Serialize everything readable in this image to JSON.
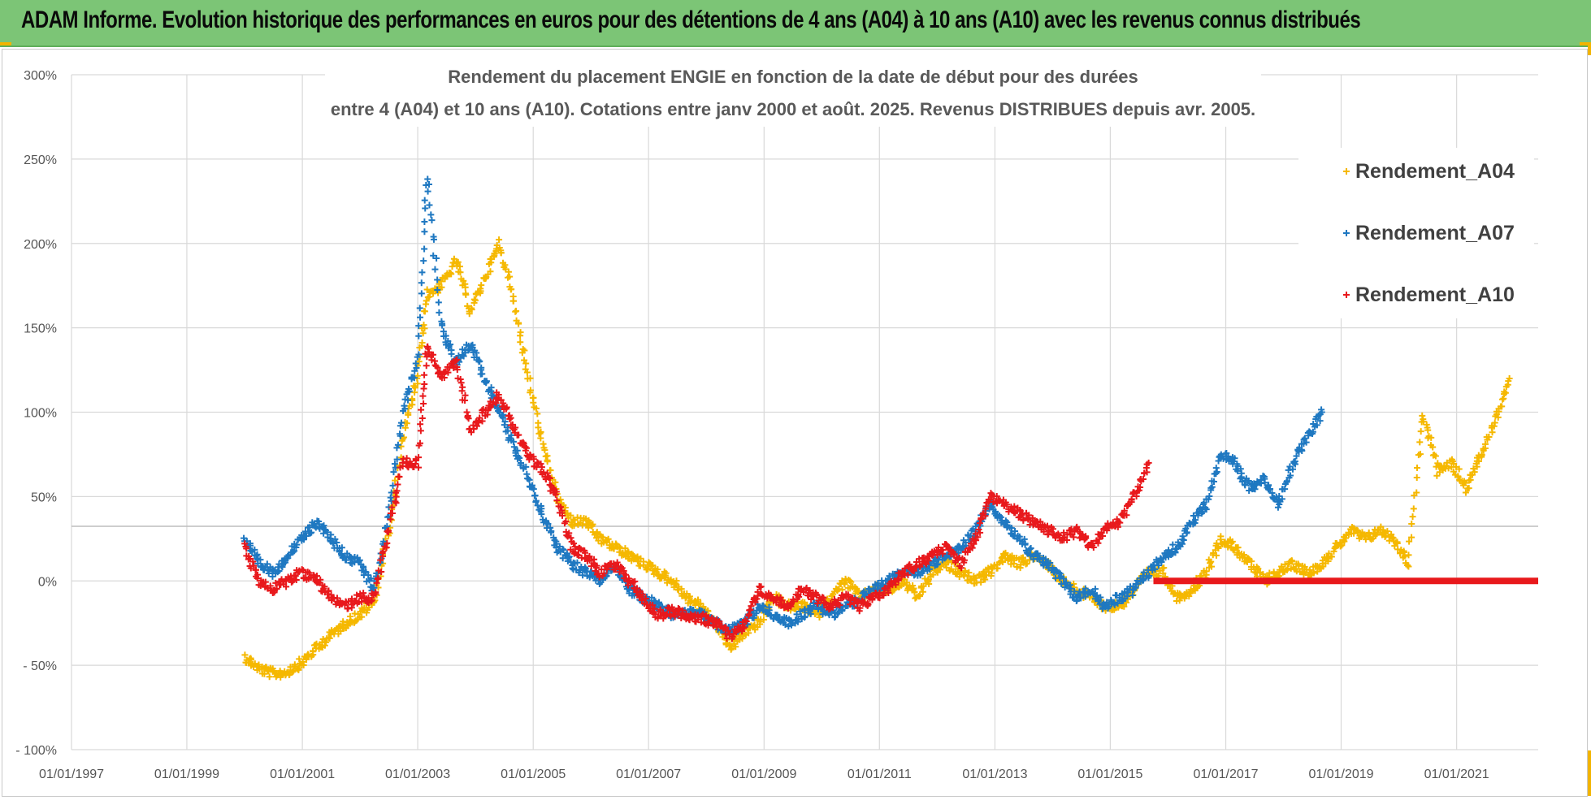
{
  "header": {
    "title": "ADAM Informe. Evolution historique des performances en euros pour des détentions de 4 ans (A04) à 10 ans (A10) avec les revenus connus distribués"
  },
  "colors": {
    "banner": "#7cc576",
    "a04": "#f5b800",
    "a07": "#1f78c1",
    "a10": "#e8191c"
  },
  "chart_data": {
    "type": "scatter",
    "title_lines": [
      "Rendement du placement ENGIE en fonction de la date de début pour des durées",
      "entre 4 (A04) et 10 ans (A10). Cotations entre janv 2000 et août. 2025. Revenus DISTRIBUES depuis avr. 2005."
    ],
    "x_axis": {
      "type": "date",
      "range": [
        "1997-01-01",
        "2022-06-01"
      ],
      "tick_labels": [
        "01/01/1997",
        "01/01/1999",
        "01/01/2001",
        "01/01/2003",
        "01/01/2005",
        "01/01/2007",
        "01/01/2009",
        "01/01/2011",
        "01/01/2013",
        "01/01/2015",
        "01/01/2017",
        "01/01/2019",
        "01/01/2021"
      ]
    },
    "y_axis": {
      "unit": "%",
      "range": [
        -100,
        300
      ],
      "tick_values": [
        300,
        250,
        200,
        150,
        100,
        50,
        0,
        -50,
        -100
      ],
      "tick_labels": [
        "300%",
        "250%",
        "200%",
        "150%",
        "100%",
        "50%",
        "0%",
        "- 50%",
        "- 100%"
      ]
    },
    "grid": true,
    "legend_position": "top-right",
    "marker": "+",
    "series": [
      {
        "name": "Rendement_A04",
        "color": "#f5b800",
        "points": [
          [
            "2000-01-01",
            -45
          ],
          [
            "2000-04-01",
            -52
          ],
          [
            "2000-07-01",
            -55
          ],
          [
            "2000-10-01",
            -54
          ],
          [
            "2001-01-01",
            -48
          ],
          [
            "2001-04-01",
            -40
          ],
          [
            "2001-07-01",
            -32
          ],
          [
            "2001-10-01",
            -25
          ],
          [
            "2002-01-01",
            -20
          ],
          [
            "2002-04-01",
            -12
          ],
          [
            "2002-07-01",
            30
          ],
          [
            "2002-10-01",
            85
          ],
          [
            "2003-01-01",
            120
          ],
          [
            "2003-03-01",
            170
          ],
          [
            "2003-06-01",
            175
          ],
          [
            "2003-09-01",
            190
          ],
          [
            "2003-12-01",
            160
          ],
          [
            "2004-03-01",
            180
          ],
          [
            "2004-06-01",
            200
          ],
          [
            "2004-09-01",
            165
          ],
          [
            "2004-12-01",
            120
          ],
          [
            "2005-03-01",
            80
          ],
          [
            "2005-06-01",
            50
          ],
          [
            "2005-09-01",
            35
          ],
          [
            "2005-12-01",
            35
          ],
          [
            "2006-03-01",
            25
          ],
          [
            "2006-06-01",
            20
          ],
          [
            "2006-09-01",
            15
          ],
          [
            "2006-12-01",
            10
          ],
          [
            "2007-03-01",
            5
          ],
          [
            "2007-06-01",
            0
          ],
          [
            "2007-09-01",
            -10
          ],
          [
            "2007-12-01",
            -15
          ],
          [
            "2008-03-01",
            -25
          ],
          [
            "2008-06-01",
            -40
          ],
          [
            "2008-09-01",
            -30
          ],
          [
            "2008-12-01",
            -25
          ],
          [
            "2009-03-01",
            -10
          ],
          [
            "2009-06-01",
            -15
          ],
          [
            "2009-09-01",
            -15
          ],
          [
            "2009-12-01",
            -20
          ],
          [
            "2010-03-01",
            -10
          ],
          [
            "2010-06-01",
            0
          ],
          [
            "2010-09-01",
            -10
          ],
          [
            "2010-12-01",
            -5
          ],
          [
            "2011-03-01",
            -5
          ],
          [
            "2011-06-01",
            0
          ],
          [
            "2011-09-01",
            -10
          ],
          [
            "2011-12-01",
            5
          ],
          [
            "2012-03-01",
            10
          ],
          [
            "2012-06-01",
            5
          ],
          [
            "2012-09-01",
            0
          ],
          [
            "2012-12-01",
            5
          ],
          [
            "2013-03-01",
            15
          ],
          [
            "2013-06-01",
            10
          ],
          [
            "2013-09-01",
            15
          ],
          [
            "2013-12-01",
            10
          ],
          [
            "2014-03-01",
            0
          ],
          [
            "2014-06-01",
            -5
          ],
          [
            "2014-09-01",
            -10
          ],
          [
            "2014-12-01",
            -15
          ],
          [
            "2015-03-01",
            -15
          ],
          [
            "2015-06-01",
            -5
          ],
          [
            "2015-09-01",
            5
          ],
          [
            "2015-12-01",
            5
          ],
          [
            "2016-03-01",
            -10
          ],
          [
            "2016-06-01",
            -5
          ],
          [
            "2016-09-01",
            5
          ],
          [
            "2016-12-01",
            25
          ],
          [
            "2017-03-01",
            20
          ],
          [
            "2017-06-01",
            10
          ],
          [
            "2017-09-01",
            0
          ],
          [
            "2017-12-01",
            5
          ],
          [
            "2018-03-01",
            10
          ],
          [
            "2018-06-01",
            5
          ],
          [
            "2018-09-01",
            10
          ],
          [
            "2018-12-01",
            20
          ],
          [
            "2019-03-01",
            30
          ],
          [
            "2019-06-01",
            25
          ],
          [
            "2019-09-01",
            30
          ],
          [
            "2019-12-01",
            25
          ],
          [
            "2020-03-01",
            10
          ],
          [
            "2020-06-01",
            100
          ],
          [
            "2020-09-01",
            65
          ],
          [
            "2020-12-01",
            70
          ],
          [
            "2021-03-01",
            55
          ],
          [
            "2021-06-01",
            75
          ],
          [
            "2021-09-01",
            95
          ],
          [
            "2021-12-01",
            120
          ]
        ]
      },
      {
        "name": "Rendement_A07",
        "color": "#1f78c1",
        "points": [
          [
            "2000-01-01",
            25
          ],
          [
            "2000-04-01",
            10
          ],
          [
            "2000-07-01",
            5
          ],
          [
            "2000-10-01",
            15
          ],
          [
            "2001-01-01",
            25
          ],
          [
            "2001-04-01",
            35
          ],
          [
            "2001-07-01",
            25
          ],
          [
            "2001-10-01",
            15
          ],
          [
            "2002-01-01",
            10
          ],
          [
            "2002-04-01",
            -5
          ],
          [
            "2002-07-01",
            40
          ],
          [
            "2002-10-01",
            100
          ],
          [
            "2003-01-01",
            130
          ],
          [
            "2003-03-01",
            240
          ],
          [
            "2003-06-01",
            150
          ],
          [
            "2003-09-01",
            130
          ],
          [
            "2003-12-01",
            140
          ],
          [
            "2004-03-01",
            120
          ],
          [
            "2004-06-01",
            100
          ],
          [
            "2004-09-01",
            80
          ],
          [
            "2004-12-01",
            60
          ],
          [
            "2005-03-01",
            40
          ],
          [
            "2005-06-01",
            20
          ],
          [
            "2005-09-01",
            10
          ],
          [
            "2005-12-01",
            5
          ],
          [
            "2006-03-01",
            0
          ],
          [
            "2006-06-01",
            10
          ],
          [
            "2006-09-01",
            -5
          ],
          [
            "2006-12-01",
            -10
          ],
          [
            "2007-03-01",
            -15
          ],
          [
            "2007-06-01",
            -20
          ],
          [
            "2007-09-01",
            -18
          ],
          [
            "2007-12-01",
            -20
          ],
          [
            "2008-03-01",
            -25
          ],
          [
            "2008-06-01",
            -30
          ],
          [
            "2008-09-01",
            -25
          ],
          [
            "2008-12-01",
            -15
          ],
          [
            "2009-03-01",
            -20
          ],
          [
            "2009-06-01",
            -25
          ],
          [
            "2009-09-01",
            -20
          ],
          [
            "2009-12-01",
            -15
          ],
          [
            "2010-03-01",
            -20
          ],
          [
            "2010-06-01",
            -15
          ],
          [
            "2010-09-01",
            -10
          ],
          [
            "2010-12-01",
            -5
          ],
          [
            "2011-03-01",
            0
          ],
          [
            "2011-06-01",
            5
          ],
          [
            "2011-09-01",
            5
          ],
          [
            "2011-12-01",
            10
          ],
          [
            "2012-03-01",
            15
          ],
          [
            "2012-06-01",
            20
          ],
          [
            "2012-09-01",
            30
          ],
          [
            "2012-12-01",
            45
          ],
          [
            "2013-03-01",
            35
          ],
          [
            "2013-06-01",
            25
          ],
          [
            "2013-09-01",
            15
          ],
          [
            "2013-12-01",
            10
          ],
          [
            "2014-03-01",
            0
          ],
          [
            "2014-06-01",
            -10
          ],
          [
            "2014-09-01",
            -5
          ],
          [
            "2014-12-01",
            -15
          ],
          [
            "2015-03-01",
            -10
          ],
          [
            "2015-06-01",
            -5
          ],
          [
            "2015-09-01",
            5
          ],
          [
            "2015-12-01",
            15
          ],
          [
            "2016-03-01",
            20
          ],
          [
            "2016-06-01",
            35
          ],
          [
            "2016-09-01",
            45
          ],
          [
            "2016-12-01",
            75
          ],
          [
            "2017-03-01",
            70
          ],
          [
            "2017-06-01",
            55
          ],
          [
            "2017-09-01",
            60
          ],
          [
            "2017-12-01",
            45
          ],
          [
            "2018-03-01",
            70
          ],
          [
            "2018-06-01",
            85
          ],
          [
            "2018-09-01",
            100
          ]
        ]
      },
      {
        "name": "Rendement_A10",
        "color": "#e8191c",
        "points": [
          [
            "2000-01-01",
            20
          ],
          [
            "2000-04-01",
            0
          ],
          [
            "2000-07-01",
            -5
          ],
          [
            "2000-10-01",
            0
          ],
          [
            "2001-01-01",
            5
          ],
          [
            "2001-04-01",
            0
          ],
          [
            "2001-07-01",
            -10
          ],
          [
            "2001-10-01",
            -15
          ],
          [
            "2002-01-01",
            -10
          ],
          [
            "2002-04-01",
            -10
          ],
          [
            "2002-07-01",
            30
          ],
          [
            "2002-10-01",
            70
          ],
          [
            "2003-01-01",
            70
          ],
          [
            "2003-03-01",
            140
          ],
          [
            "2003-06-01",
            120
          ],
          [
            "2003-09-01",
            130
          ],
          [
            "2003-12-01",
            90
          ],
          [
            "2004-03-01",
            100
          ],
          [
            "2004-06-01",
            110
          ],
          [
            "2004-09-01",
            90
          ],
          [
            "2004-12-01",
            75
          ],
          [
            "2005-03-01",
            65
          ],
          [
            "2005-06-01",
            50
          ],
          [
            "2005-09-01",
            20
          ],
          [
            "2005-12-01",
            15
          ],
          [
            "2006-03-01",
            5
          ],
          [
            "2006-06-01",
            10
          ],
          [
            "2006-09-01",
            0
          ],
          [
            "2006-12-01",
            -10
          ],
          [
            "2007-03-01",
            -20
          ],
          [
            "2007-06-01",
            -18
          ],
          [
            "2007-09-01",
            -20
          ],
          [
            "2007-12-01",
            -22
          ],
          [
            "2008-03-01",
            -25
          ],
          [
            "2008-06-01",
            -33
          ],
          [
            "2008-09-01",
            -25
          ],
          [
            "2008-12-01",
            -5
          ],
          [
            "2009-03-01",
            -10
          ],
          [
            "2009-06-01",
            -15
          ],
          [
            "2009-09-01",
            -5
          ],
          [
            "2009-12-01",
            -10
          ],
          [
            "2010-03-01",
            -15
          ],
          [
            "2010-06-01",
            -10
          ],
          [
            "2010-09-01",
            -15
          ],
          [
            "2010-12-01",
            -10
          ],
          [
            "2011-03-01",
            -5
          ],
          [
            "2011-06-01",
            5
          ],
          [
            "2011-09-01",
            10
          ],
          [
            "2011-12-01",
            15
          ],
          [
            "2012-03-01",
            20
          ],
          [
            "2012-06-01",
            10
          ],
          [
            "2012-09-01",
            25
          ],
          [
            "2012-12-01",
            50
          ],
          [
            "2013-03-01",
            45
          ],
          [
            "2013-06-01",
            40
          ],
          [
            "2013-09-01",
            35
          ],
          [
            "2013-12-01",
            30
          ],
          [
            "2014-03-01",
            25
          ],
          [
            "2014-06-01",
            30
          ],
          [
            "2014-09-01",
            20
          ],
          [
            "2014-12-01",
            30
          ],
          [
            "2015-03-01",
            35
          ],
          [
            "2015-06-01",
            50
          ],
          [
            "2015-09-01",
            70
          ]
        ],
        "flat_segment": {
          "from": "2015-10-01",
          "to": "2022-06-01",
          "value": 0
        }
      }
    ]
  }
}
